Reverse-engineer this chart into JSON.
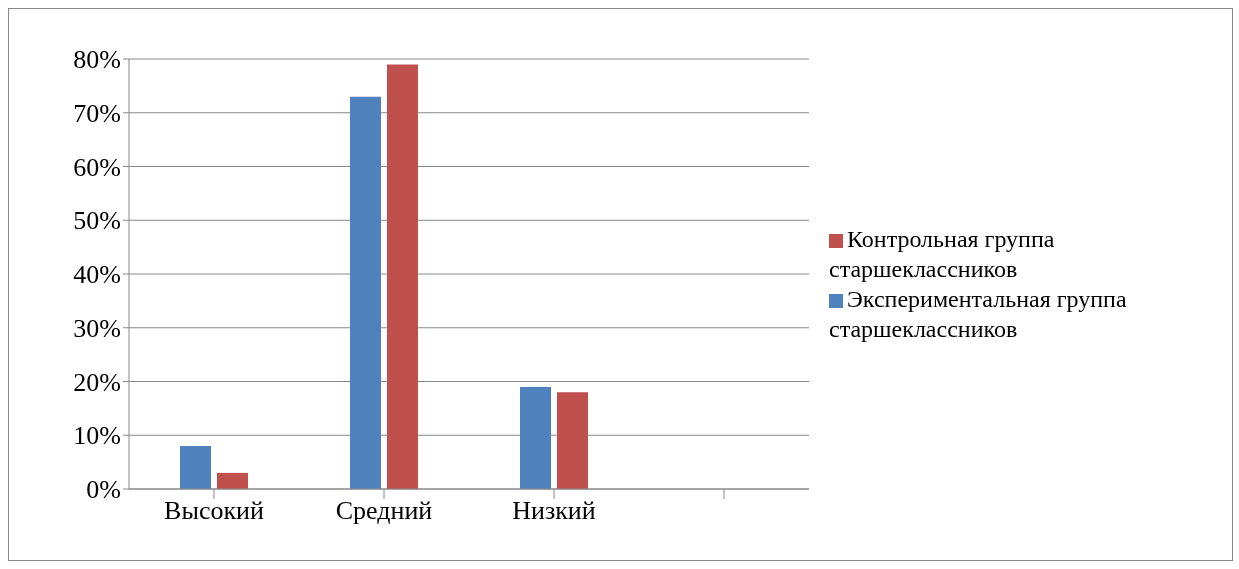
{
  "chart_data": {
    "type": "bar",
    "categories": [
      "Высокий",
      "Средний",
      "Низкий",
      null
    ],
    "series": [
      {
        "name": "Экспериментальная группа старшеклассников",
        "color": "#4f81bd",
        "values": [
          8,
          73,
          19,
          null
        ]
      },
      {
        "name": "Контрольная группа старшеклассников",
        "color": "#c0504d",
        "values": [
          3,
          79,
          18,
          null
        ]
      }
    ],
    "ylim": [
      0,
      80
    ],
    "yticks": [
      {
        "value": 0,
        "label": "0%"
      },
      {
        "value": 10,
        "label": "10%"
      },
      {
        "value": 20,
        "label": "20%"
      },
      {
        "value": 30,
        "label": "30%"
      },
      {
        "value": 40,
        "label": "40%"
      },
      {
        "value": 50,
        "label": "50%"
      },
      {
        "value": 60,
        "label": "60%"
      },
      {
        "value": 70,
        "label": "70%"
      },
      {
        "value": 80,
        "label": "80%"
      }
    ],
    "grid": "y",
    "legend": "right"
  }
}
